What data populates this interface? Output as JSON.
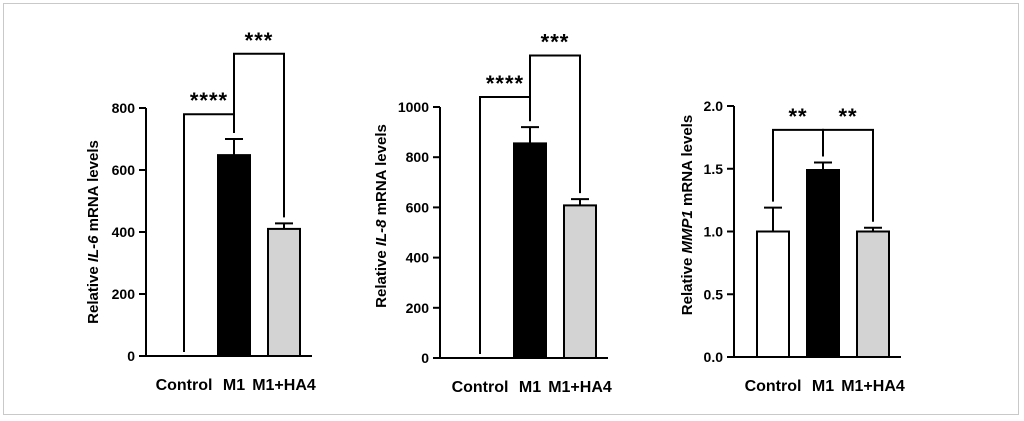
{
  "chart_data": [
    {
      "type": "bar",
      "ylabel": {
        "prefix": "Relative ",
        "gene": "IL-6",
        "suffix": " mRNA levels"
      },
      "categories": [
        "Control",
        "M1",
        "M1+HA4"
      ],
      "values": [
        0,
        648,
        410
      ],
      "errors": [
        0,
        52,
        18
      ],
      "colors": [
        "#ffffff",
        "#000000",
        "#d3d3d3"
      ],
      "ylim": [
        0,
        800
      ],
      "yticks": [
        0,
        200,
        400,
        600,
        800
      ],
      "ytick_labels": [
        "0",
        "200",
        "400",
        "600",
        "800"
      ],
      "significance": [
        {
          "from": 0,
          "to": 1,
          "label": "****",
          "level": 780
        },
        {
          "from": 1,
          "to": 2,
          "label": "***",
          "level": 975
        }
      ]
    },
    {
      "type": "bar",
      "ylabel": {
        "prefix": "Relative ",
        "gene": "IL-8",
        "suffix": " mRNA levels"
      },
      "categories": [
        "Control",
        "M1",
        "M1+HA4"
      ],
      "values": [
        0,
        855,
        608
      ],
      "errors": [
        0,
        65,
        25
      ],
      "colors": [
        "#ffffff",
        "#000000",
        "#d3d3d3"
      ],
      "ylim": [
        0,
        1000
      ],
      "yticks": [
        0,
        200,
        400,
        600,
        800,
        1000
      ],
      "ytick_labels": [
        "0",
        "200",
        "400",
        "600",
        "800",
        "1000"
      ],
      "significance": [
        {
          "from": 0,
          "to": 1,
          "label": "****",
          "level": 1040
        },
        {
          "from": 1,
          "to": 2,
          "label": "***",
          "level": 1205
        }
      ]
    },
    {
      "type": "bar",
      "ylabel": {
        "prefix": "Relative ",
        "gene": "MMP1",
        "suffix": " mRNA levels"
      },
      "categories": [
        "Control",
        "M1",
        "M1+HA4"
      ],
      "values": [
        1.0,
        1.49,
        1.0
      ],
      "errors": [
        0.19,
        0.06,
        0.03
      ],
      "colors": [
        "#ffffff",
        "#000000",
        "#d3d3d3"
      ],
      "ylim": [
        0,
        2.0
      ],
      "yticks": [
        0,
        0.5,
        1.0,
        1.5,
        2.0
      ],
      "ytick_labels": [
        "0.0",
        "0.5",
        "1.0",
        "1.5",
        "2.0"
      ],
      "significance": [
        {
          "from": 0,
          "to": 1,
          "label": "**",
          "level": 1.81
        },
        {
          "from": 1,
          "to": 2,
          "label": "**",
          "level": 1.81
        }
      ]
    }
  ]
}
